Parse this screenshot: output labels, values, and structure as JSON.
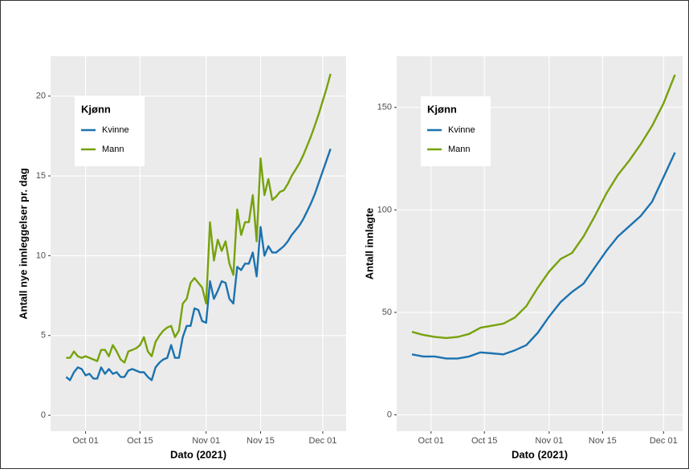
{
  "chart_data": [
    {
      "type": "line",
      "x": [
        "Sep 26",
        "Sep 27",
        "Sep 28",
        "Sep 29",
        "Sep 30",
        "Oct 01",
        "Oct 02",
        "Oct 03",
        "Oct 04",
        "Oct 05",
        "Oct 06",
        "Oct 07",
        "Oct 08",
        "Oct 09",
        "Oct 10",
        "Oct 11",
        "Oct 12",
        "Oct 13",
        "Oct 14",
        "Oct 15",
        "Oct 16",
        "Oct 17",
        "Oct 18",
        "Oct 19",
        "Oct 20",
        "Oct 21",
        "Oct 22",
        "Oct 23",
        "Oct 24",
        "Oct 25",
        "Oct 26",
        "Oct 27",
        "Oct 28",
        "Oct 29",
        "Oct 30",
        "Oct 31",
        "Nov 01",
        "Nov 02",
        "Nov 03",
        "Nov 04",
        "Nov 05",
        "Nov 06",
        "Nov 07",
        "Nov 08",
        "Nov 09",
        "Nov 10",
        "Nov 11",
        "Nov 12",
        "Nov 13",
        "Nov 14",
        "Nov 15",
        "Nov 16",
        "Nov 17",
        "Nov 18",
        "Nov 19",
        "Nov 20",
        "Nov 21",
        "Nov 22",
        "Nov 23",
        "Nov 24",
        "Nov 25",
        "Nov 26",
        "Nov 27",
        "Nov 28",
        "Nov 29",
        "Nov 30",
        "Dec 01",
        "Dec 02",
        "Dec 03"
      ],
      "series": [
        {
          "name": "Kvinne",
          "color": "#1b72b0",
          "values": [
            2.4,
            2.2,
            2.7,
            3.0,
            2.9,
            2.5,
            2.6,
            2.3,
            2.3,
            3.0,
            2.6,
            2.9,
            2.6,
            2.7,
            2.4,
            2.4,
            2.8,
            2.9,
            2.8,
            2.7,
            2.7,
            2.4,
            2.2,
            3.0,
            3.3,
            3.5,
            3.6,
            4.4,
            3.6,
            3.6,
            4.9,
            5.6,
            5.6,
            6.7,
            6.6,
            5.9,
            5.8,
            8.4,
            7.3,
            7.8,
            8.4,
            8.3,
            7.3,
            7.0,
            9.3,
            9.1,
            9.5,
            9.5,
            10.2,
            8.7,
            11.8,
            10.0,
            10.6,
            10.2,
            10.2,
            10.4,
            10.6,
            10.9,
            11.3,
            11.6,
            11.9,
            12.3,
            12.8,
            13.3,
            13.9,
            14.6,
            15.3,
            16.0,
            16.7
          ]
        },
        {
          "name": "Mann",
          "color": "#76a20c",
          "values": [
            3.6,
            3.6,
            4.0,
            3.7,
            3.6,
            3.7,
            3.6,
            3.5,
            3.4,
            4.1,
            4.1,
            3.7,
            4.4,
            4.0,
            3.5,
            3.3,
            4.0,
            4.1,
            4.2,
            4.4,
            4.9,
            4.0,
            3.7,
            4.6,
            5.0,
            5.3,
            5.5,
            5.6,
            4.9,
            5.3,
            7.0,
            7.3,
            8.3,
            8.6,
            8.3,
            8.0,
            7.0,
            12.1,
            9.7,
            11.0,
            10.3,
            10.9,
            9.5,
            8.8,
            12.9,
            11.3,
            12.1,
            12.1,
            13.8,
            10.9,
            16.1,
            13.8,
            14.8,
            13.5,
            13.7,
            14.0,
            14.1,
            14.5,
            15.0,
            15.4,
            15.8,
            16.3,
            16.9,
            17.5,
            18.2,
            18.9,
            19.7,
            20.5,
            21.4
          ]
        }
      ],
      "xlim": [
        "Sep 22",
        "Dec 07"
      ],
      "xticks": [
        "Oct 01",
        "Oct 15",
        "Nov 01",
        "Nov 15",
        "Dec 01"
      ],
      "ylim": [
        -1,
        22.5
      ],
      "yticks": [
        0,
        5,
        10,
        15,
        20
      ],
      "x_label": "Dato (2021)",
      "y_label": "Antall nye innleggelser pr. dag",
      "legend_title": "Kjønn",
      "legend": "top-left",
      "grid": true
    },
    {
      "type": "line",
      "x": [
        "Sep 26",
        "Sep 29",
        "Oct 02",
        "Oct 05",
        "Oct 08",
        "Oct 11",
        "Oct 14",
        "Oct 17",
        "Oct 20",
        "Oct 23",
        "Oct 26",
        "Oct 29",
        "Nov 01",
        "Nov 04",
        "Nov 07",
        "Nov 10",
        "Nov 13",
        "Nov 16",
        "Nov 19",
        "Nov 22",
        "Nov 25",
        "Nov 28",
        "Dec 01",
        "Dec 04"
      ],
      "series": [
        {
          "name": "Kvinne",
          "color": "#1b72b0",
          "values": [
            29.5,
            28.5,
            28.5,
            27.5,
            27.5,
            28.5,
            30.5,
            30,
            29.5,
            31.5,
            34,
            40,
            48,
            55,
            60,
            64,
            72,
            80,
            87,
            92,
            97,
            104,
            116,
            128
          ]
        },
        {
          "name": "Mann",
          "color": "#76a20c",
          "values": [
            40.5,
            39,
            38,
            37.5,
            38,
            39.5,
            42.5,
            43.5,
            44.5,
            47.5,
            53,
            62,
            70,
            76,
            79,
            87,
            97,
            108,
            117,
            124,
            132,
            141,
            152,
            166
          ]
        }
      ],
      "xlim": [
        "Sep 22",
        "Dec 06"
      ],
      "xticks": [
        "Oct 01",
        "Oct 15",
        "Nov 01",
        "Nov 15",
        "Dec 01"
      ],
      "ylim": [
        -8,
        175
      ],
      "yticks": [
        0,
        50,
        100,
        150
      ],
      "x_label": "Dato (2021)",
      "y_label": "Antall innlagte",
      "legend_title": "Kjønn",
      "legend": "top-left",
      "grid": true
    }
  ]
}
